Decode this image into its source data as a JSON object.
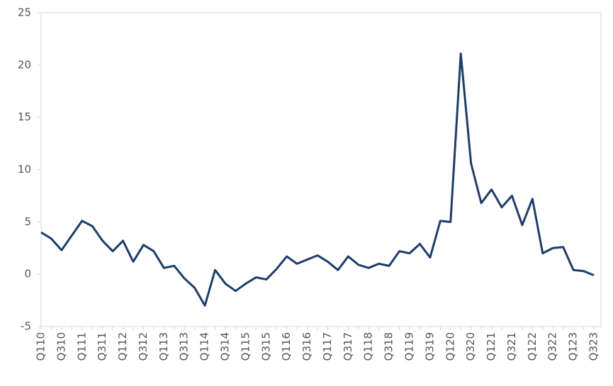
{
  "chart_data": {
    "type": "line",
    "categories": [
      "Q110",
      null,
      "Q310",
      null,
      "Q111",
      null,
      "Q311",
      null,
      "Q112",
      null,
      "Q312",
      null,
      "Q113",
      null,
      "Q313",
      null,
      "Q114",
      null,
      "Q314",
      null,
      "Q115",
      null,
      "Q315",
      null,
      "Q116",
      null,
      "Q316",
      null,
      "Q117",
      null,
      "Q317",
      null,
      "Q118",
      null,
      "Q318",
      null,
      "Q119",
      null,
      "Q319",
      null,
      "Q120",
      null,
      "Q320",
      null,
      "Q121",
      null,
      "Q321",
      null,
      "Q122",
      null,
      "Q322",
      null,
      "Q123",
      null,
      "Q323"
    ],
    "series": [
      {
        "color": "#1c3d6e",
        "values": [
          4.0,
          3.4,
          2.3,
          3.7,
          5.1,
          4.6,
          3.2,
          2.2,
          3.2,
          1.2,
          2.8,
          2.2,
          0.6,
          0.8,
          -0.4,
          -1.3,
          -3.0,
          0.4,
          -0.9,
          -1.6,
          -0.9,
          -0.3,
          -0.5,
          0.5,
          1.7,
          1.0,
          1.4,
          1.8,
          1.2,
          0.4,
          1.7,
          0.9,
          0.6,
          1.0,
          0.8,
          2.2,
          2.0,
          2.9,
          1.6,
          5.1,
          5.0,
          21.1,
          10.6,
          6.8,
          8.1,
          6.4,
          7.5,
          4.7,
          7.2,
          2.0,
          2.5,
          2.6,
          0.4,
          0.3,
          -0.1
        ]
      }
    ],
    "ylim": [
      -5,
      25
    ],
    "yticks": [
      -5,
      0,
      5,
      10,
      15,
      20,
      25
    ],
    "grid": false
  }
}
